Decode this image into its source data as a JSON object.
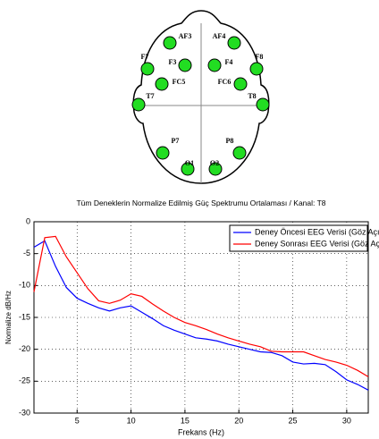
{
  "diagram": {
    "electrodes": [
      "AF3",
      "AF4",
      "F7",
      "F8",
      "F3",
      "F4",
      "FC5",
      "FC6",
      "T7",
      "T8",
      "P7",
      "P8",
      "O1",
      "O2"
    ]
  },
  "chart_data": {
    "type": "line",
    "title": "Tüm Deneklerin Normalize Edilmiş Güç Spektrumu Ortalaması / Kanal: T8",
    "x_label": "Frekans (Hz)",
    "y_label": "Normalize dB/Hz",
    "x": [
      1,
      2,
      3,
      4,
      5,
      6,
      7,
      8,
      9,
      10,
      11,
      12,
      13,
      14,
      15,
      16,
      17,
      18,
      19,
      20,
      21,
      22,
      23,
      24,
      25,
      26,
      27,
      28,
      29,
      30,
      31,
      32
    ],
    "series": [
      {
        "name": "Deney Öncesi EEG Verisi (Göz Açık)",
        "color": "#0000ff",
        "values": [
          -4,
          -3,
          -7,
          -10.3,
          -12,
          -12.8,
          -13.5,
          -14,
          -13.5,
          -13.2,
          -14.2,
          -15.2,
          -16.3,
          -17,
          -17.6,
          -18.2,
          -18.4,
          -18.7,
          -19.2,
          -19.6,
          -20,
          -20.4,
          -20.5,
          -21,
          -22,
          -22.3,
          -22.2,
          -22.4,
          -23.5,
          -24.8,
          -25.5,
          -26.4
        ]
      },
      {
        "name": "Deney Sonrası EEG Verisi (Göz Açık)",
        "color": "#ff0000",
        "values": [
          -11,
          -2.5,
          -2.3,
          -5.5,
          -8,
          -10.5,
          -12.4,
          -12.8,
          -12.3,
          -11.3,
          -11.7,
          -12.9,
          -14,
          -15,
          -15.8,
          -16.3,
          -16.9,
          -17.6,
          -18.2,
          -18.7,
          -19.2,
          -19.6,
          -20.3,
          -20.4,
          -20.4,
          -20.4,
          -21,
          -21.6,
          -22,
          -22.5,
          -23.3,
          -24.3
        ]
      }
    ],
    "xlim": [
      1,
      32
    ],
    "ylim": [
      -30,
      0
    ],
    "xticks": [
      5,
      10,
      15,
      20,
      25,
      30
    ],
    "yticks": [
      -30,
      -25,
      -20,
      -15,
      -10,
      -5,
      0
    ],
    "grid": true,
    "legend": "upper right"
  }
}
